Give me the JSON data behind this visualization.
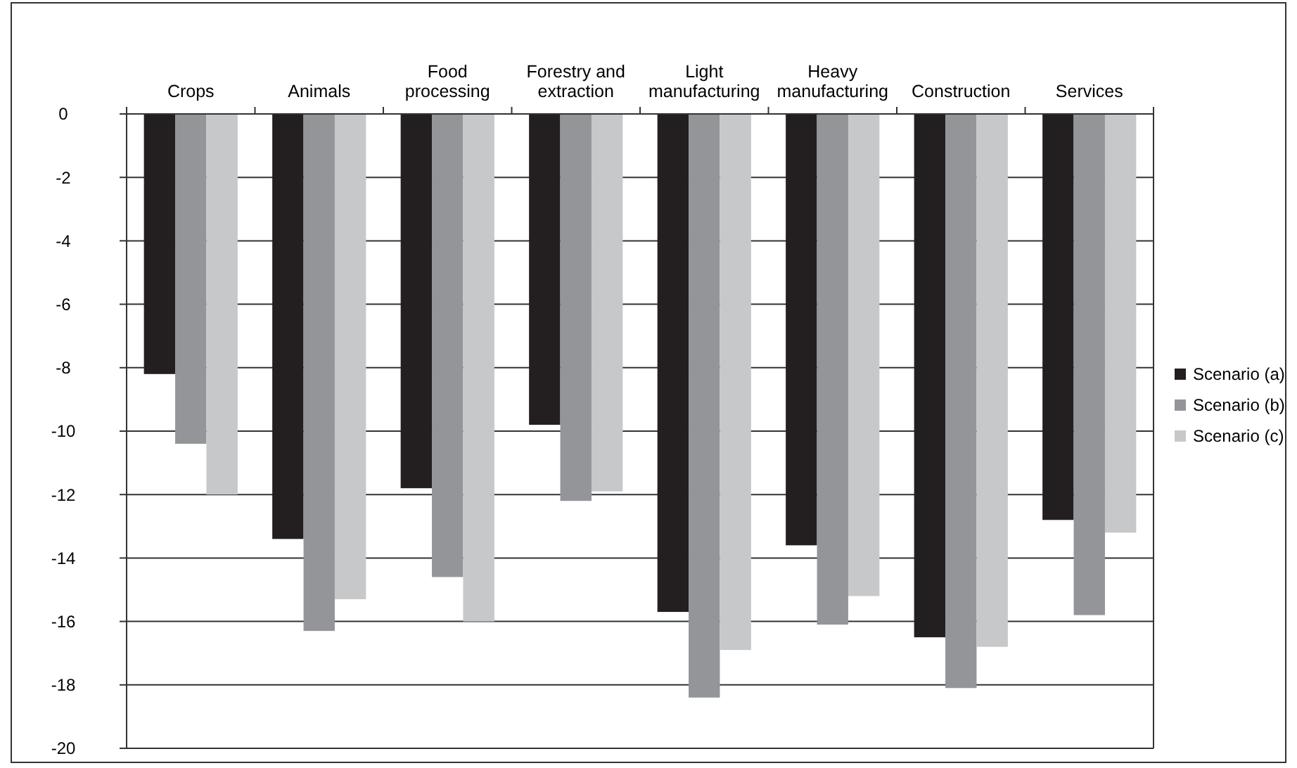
{
  "chart_data": {
    "type": "bar",
    "categories": [
      "Crops",
      "Animals",
      "Food\nprocessing",
      "Forestry and\nextraction",
      "Light\nmanufacturing",
      "Heavy\nmanufacturing",
      "Construction",
      "Services"
    ],
    "series": [
      {
        "name": "Scenario (a)",
        "color": "#231f20",
        "values": [
          -8.2,
          -13.4,
          -11.8,
          -9.8,
          -15.7,
          -13.6,
          -16.5,
          -12.8
        ]
      },
      {
        "name": "Scenario (b)",
        "color": "#939598",
        "values": [
          -10.4,
          -16.3,
          -14.6,
          -12.2,
          -18.4,
          -16.1,
          -18.1,
          -15.8
        ]
      },
      {
        "name": "Scenario (c)",
        "color": "#c7c8ca",
        "values": [
          -12.0,
          -15.3,
          -16.0,
          -11.9,
          -16.9,
          -15.2,
          -16.8,
          -13.2
        ]
      }
    ],
    "ylim": [
      -20,
      0
    ],
    "yticks": [
      -20,
      -18,
      -16,
      -14,
      -12,
      -10,
      -8,
      -6,
      -4,
      -2,
      0
    ],
    "grid": "y",
    "legend": "right"
  }
}
